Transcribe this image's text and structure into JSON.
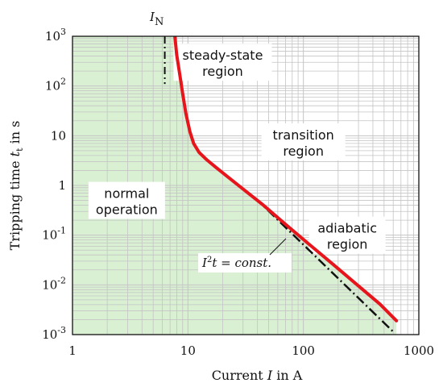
{
  "colors": {
    "normal_region_fill": "#d9f0d3",
    "trip_curve": "#e8141b",
    "reference_line": "#111111",
    "grid": "#c4c4c4"
  },
  "chart_data": {
    "type": "line",
    "xlabel_prefix": "Current ",
    "xlabel_var": "I",
    "xlabel_suffix": "  in A",
    "ylabel_prefix": "Tripping time ",
    "ylabel_var": "t",
    "ylabel_sub": "t",
    "ylabel_suffix": " in s",
    "x_scale": "log",
    "y_scale": "log",
    "xlim": [
      1,
      1000
    ],
    "ylim": [
      0.001,
      1000
    ],
    "grid": true,
    "x_ticks": [
      {
        "value": 1,
        "label": "1"
      },
      {
        "value": 10,
        "label": "10"
      },
      {
        "value": 100,
        "label": "100"
      },
      {
        "value": 1000,
        "label": "1000"
      }
    ],
    "y_ticks": [
      {
        "value": 0.001,
        "base": "10",
        "exp": "-3"
      },
      {
        "value": 0.01,
        "base": "10",
        "exp": "-2"
      },
      {
        "value": 0.1,
        "base": "10",
        "exp": "-1"
      },
      {
        "value": 1,
        "base": "1",
        "exp": ""
      },
      {
        "value": 10,
        "base": "10",
        "exp": ""
      },
      {
        "value": 100,
        "base": "10",
        "exp": "2"
      },
      {
        "value": 1000,
        "base": "10",
        "exp": "3"
      }
    ],
    "nominal_current": {
      "label_var": "I",
      "label_sub": "N",
      "x": 6.3,
      "y_top": 1000,
      "y_bottom": 110
    },
    "series": [
      {
        "role": "trip_curve",
        "x": [
          7.7,
          8.0,
          8.5,
          9.0,
          9.6,
          10.4,
          11.2,
          12.5,
          14.5,
          17.5,
          22.0,
          30.0,
          45.0,
          70.0,
          110.0,
          180.0,
          300.0,
          460.0,
          640.0
        ],
        "y": [
          1000,
          420,
          170,
          70,
          28,
          12,
          7.0,
          4.6,
          3.3,
          2.3,
          1.5,
          0.85,
          0.4,
          0.165,
          0.068,
          0.026,
          0.0095,
          0.0041,
          0.0019
        ]
      },
      {
        "role": "i2t_reference",
        "label_base": "I",
        "label_sup": "2",
        "label_rest": "t = const.",
        "x": [
          38,
          610
        ],
        "y": [
          0.57,
          0.0011
        ]
      }
    ],
    "annotations": [
      {
        "id": "steady-state",
        "lines": [
          "steady-state",
          "region"
        ],
        "x": 20,
        "y": 300
      },
      {
        "id": "transition",
        "lines": [
          "transition",
          "region"
        ],
        "x": 100,
        "y": 7.5
      },
      {
        "id": "normal",
        "lines": [
          "normal",
          "operation"
        ],
        "x": 2.95,
        "y": 0.5
      },
      {
        "id": "adiabatic",
        "lines": [
          "adiabatic",
          "region"
        ],
        "x": 240,
        "y": 0.1
      }
    ]
  }
}
